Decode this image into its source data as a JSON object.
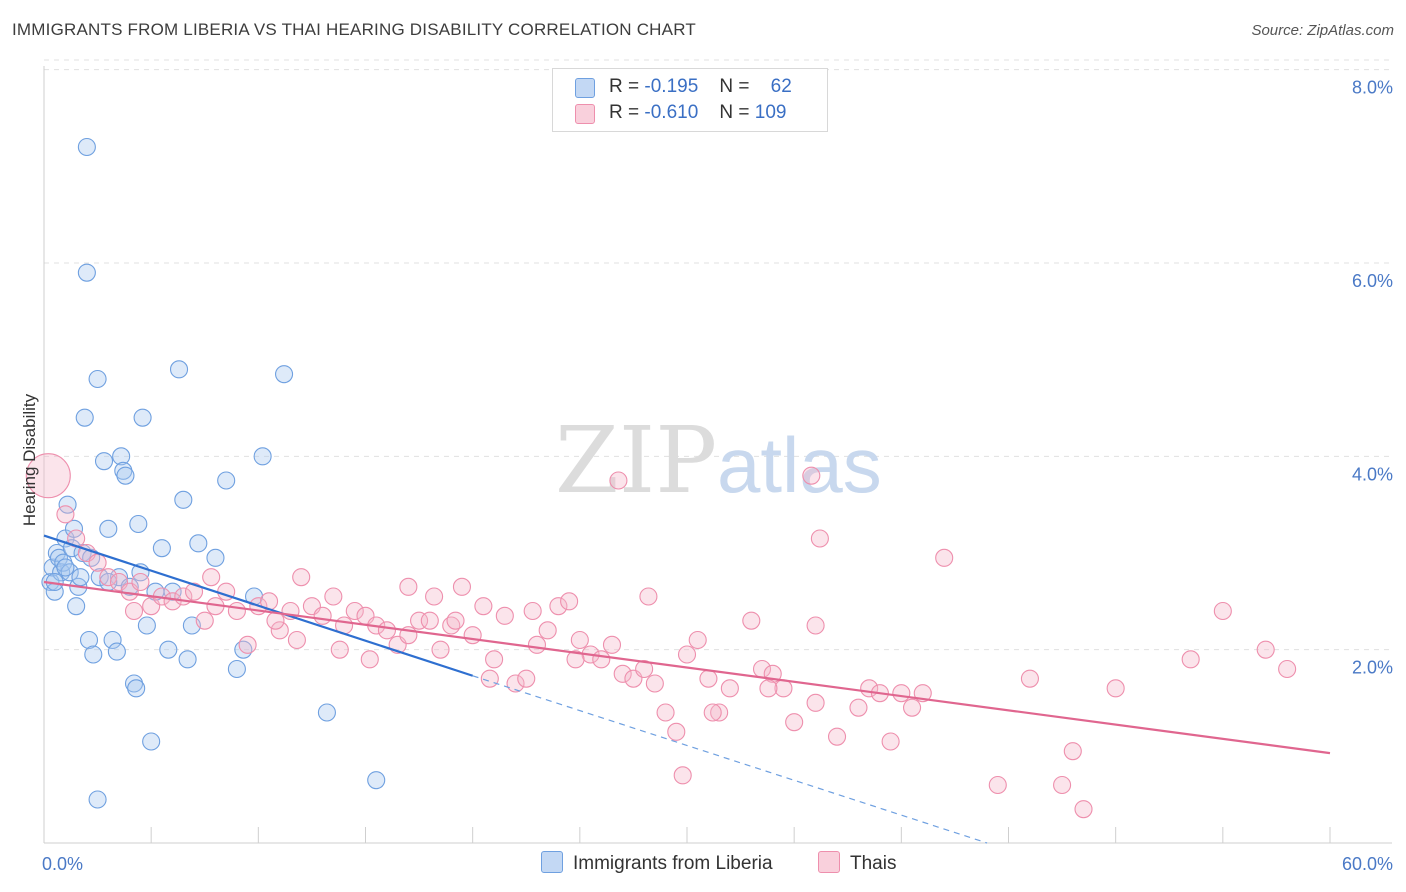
{
  "header": {
    "title": "IMMIGRANTS FROM LIBERIA VS THAI HEARING DISABILITY CORRELATION CHART",
    "source": "Source: ZipAtlas.com"
  },
  "watermark": {
    "zip": "ZIP",
    "atlas": "atlas"
  },
  "legend_top": [
    {
      "r_label": "R =",
      "r_value": "-0.195",
      "n_label": "N =",
      "n_value": "62",
      "color": "#a9c8f0"
    },
    {
      "r_label": "R =",
      "r_value": "-0.610",
      "n_label": "N =",
      "n_value": "109",
      "color": "#f5b8cb"
    }
  ],
  "legend_bottom": [
    {
      "label": "Immigrants from Liberia",
      "color": "#a9c8f0"
    },
    {
      "label": "Thais",
      "color": "#f5b8cb"
    }
  ],
  "chart_data": {
    "type": "scatter",
    "title": "IMMIGRANTS FROM LIBERIA VS THAI HEARING DISABILITY CORRELATION CHART",
    "xlabel": "",
    "ylabel": "Hearing Disability",
    "xlim": [
      0,
      60
    ],
    "ylim": [
      0,
      8.1
    ],
    "x_tick_labels": [
      {
        "value": 0,
        "label": "0.0%"
      },
      {
        "value": 60,
        "label": "60.0%"
      }
    ],
    "y_tick_labels": [
      {
        "value": 2,
        "label": "2.0%"
      },
      {
        "value": 4,
        "label": "4.0%"
      },
      {
        "value": 6,
        "label": "6.0%"
      },
      {
        "value": 8,
        "label": "8.0%"
      }
    ],
    "grid": "horizontal dashed",
    "legend_position": "top-center",
    "series": [
      {
        "name": "Immigrants from Liberia",
        "color": "#6fa0e0",
        "trend": {
          "x0": 0,
          "y0": 3.18,
          "x1": 20,
          "y1": 1.73,
          "dashed_to_x": 44,
          "dashed_to_y": 0
        },
        "points": [
          [
            0.3,
            2.7
          ],
          [
            0.4,
            2.85
          ],
          [
            0.5,
            2.6
          ],
          [
            0.6,
            3.0
          ],
          [
            0.7,
            2.95
          ],
          [
            0.8,
            2.8
          ],
          [
            0.9,
            2.9
          ],
          [
            1.0,
            3.15
          ],
          [
            1.1,
            3.5
          ],
          [
            1.2,
            2.8
          ],
          [
            1.3,
            3.05
          ],
          [
            1.4,
            3.25
          ],
          [
            1.5,
            2.45
          ],
          [
            1.6,
            2.65
          ],
          [
            1.7,
            2.75
          ],
          [
            1.8,
            3.0
          ],
          [
            1.9,
            4.4
          ],
          [
            2.0,
            5.9
          ],
          [
            2.1,
            2.1
          ],
          [
            2.2,
            2.95
          ],
          [
            2.3,
            1.95
          ],
          [
            2.5,
            4.8
          ],
          [
            2.6,
            2.75
          ],
          [
            2.8,
            3.95
          ],
          [
            3.0,
            3.25
          ],
          [
            3.2,
            2.1
          ],
          [
            3.4,
            1.98
          ],
          [
            3.5,
            2.75
          ],
          [
            3.6,
            4.0
          ],
          [
            3.7,
            3.85
          ],
          [
            3.8,
            3.8
          ],
          [
            4.0,
            2.65
          ],
          [
            4.2,
            1.65
          ],
          [
            4.3,
            1.6
          ],
          [
            4.4,
            3.3
          ],
          [
            4.5,
            2.8
          ],
          [
            4.6,
            4.4
          ],
          [
            4.8,
            2.25
          ],
          [
            5.0,
            1.05
          ],
          [
            5.2,
            2.6
          ],
          [
            5.5,
            3.05
          ],
          [
            5.8,
            2.0
          ],
          [
            6.0,
            2.6
          ],
          [
            6.3,
            4.9
          ],
          [
            6.5,
            3.55
          ],
          [
            6.7,
            1.9
          ],
          [
            6.9,
            2.25
          ],
          [
            7.2,
            3.1
          ],
          [
            8.0,
            2.95
          ],
          [
            8.5,
            3.75
          ],
          [
            9.0,
            1.8
          ],
          [
            9.3,
            2.0
          ],
          [
            9.8,
            2.55
          ],
          [
            10.2,
            4.0
          ],
          [
            11.2,
            4.85
          ],
          [
            13.2,
            1.35
          ],
          [
            15.5,
            0.65
          ],
          [
            2.5,
            0.45
          ],
          [
            2.0,
            7.2
          ],
          [
            0.5,
            2.7
          ],
          [
            1.0,
            2.85
          ],
          [
            3.0,
            2.7
          ]
        ]
      },
      {
        "name": "Thais",
        "color": "#ee8fad",
        "trend": {
          "x0": 0,
          "y0": 2.7,
          "x1": 60,
          "y1": 0.93
        },
        "points": [
          [
            0.2,
            3.8
          ],
          [
            1.0,
            3.4
          ],
          [
            1.5,
            3.15
          ],
          [
            2.0,
            3.0
          ],
          [
            2.5,
            2.9
          ],
          [
            3.0,
            2.75
          ],
          [
            3.5,
            2.7
          ],
          [
            4.0,
            2.6
          ],
          [
            4.2,
            2.4
          ],
          [
            4.5,
            2.7
          ],
          [
            5.0,
            2.45
          ],
          [
            5.5,
            2.55
          ],
          [
            6.0,
            2.5
          ],
          [
            6.5,
            2.55
          ],
          [
            7.0,
            2.6
          ],
          [
            7.5,
            2.3
          ],
          [
            8.0,
            2.45
          ],
          [
            8.5,
            2.6
          ],
          [
            9.0,
            2.4
          ],
          [
            9.5,
            2.05
          ],
          [
            10.0,
            2.45
          ],
          [
            10.5,
            2.5
          ],
          [
            11.0,
            2.2
          ],
          [
            11.5,
            2.4
          ],
          [
            12.0,
            2.75
          ],
          [
            12.5,
            2.45
          ],
          [
            13.0,
            2.35
          ],
          [
            13.5,
            2.55
          ],
          [
            14.0,
            2.25
          ],
          [
            14.5,
            2.4
          ],
          [
            15.0,
            2.35
          ],
          [
            15.5,
            2.25
          ],
          [
            16.0,
            2.2
          ],
          [
            16.5,
            2.05
          ],
          [
            17.0,
            2.15
          ],
          [
            17.5,
            2.3
          ],
          [
            18.0,
            2.3
          ],
          [
            18.5,
            2.0
          ],
          [
            19.0,
            2.25
          ],
          [
            19.5,
            2.65
          ],
          [
            20.0,
            2.15
          ],
          [
            20.5,
            2.45
          ],
          [
            21.0,
            1.9
          ],
          [
            21.5,
            2.35
          ],
          [
            22.0,
            1.65
          ],
          [
            22.5,
            1.7
          ],
          [
            23.0,
            2.05
          ],
          [
            23.5,
            2.2
          ],
          [
            24.0,
            2.45
          ],
          [
            24.5,
            2.5
          ],
          [
            25.0,
            2.1
          ],
          [
            25.5,
            1.95
          ],
          [
            26.0,
            1.9
          ],
          [
            26.5,
            2.05
          ],
          [
            27.0,
            1.75
          ],
          [
            27.5,
            1.7
          ],
          [
            28.0,
            1.8
          ],
          [
            28.5,
            1.65
          ],
          [
            29.0,
            1.35
          ],
          [
            29.5,
            1.15
          ],
          [
            30.0,
            1.95
          ],
          [
            30.5,
            2.1
          ],
          [
            31.0,
            1.7
          ],
          [
            31.5,
            1.35
          ],
          [
            32.0,
            1.6
          ],
          [
            33.0,
            2.3
          ],
          [
            33.5,
            1.8
          ],
          [
            34.0,
            1.75
          ],
          [
            34.5,
            1.6
          ],
          [
            35.0,
            1.25
          ],
          [
            36.0,
            2.25
          ],
          [
            37.0,
            1.1
          ],
          [
            38.0,
            1.4
          ],
          [
            38.5,
            1.6
          ],
          [
            39.0,
            1.55
          ],
          [
            39.5,
            1.05
          ],
          [
            40.0,
            1.55
          ],
          [
            40.5,
            1.4
          ],
          [
            41.0,
            1.55
          ],
          [
            42.0,
            2.95
          ],
          [
            44.5,
            0.6
          ],
          [
            46.0,
            1.7
          ],
          [
            47.5,
            0.6
          ],
          [
            48.0,
            0.95
          ],
          [
            48.5,
            0.35
          ],
          [
            50.0,
            1.6
          ],
          [
            53.5,
            1.9
          ],
          [
            55.0,
            2.4
          ],
          [
            57.0,
            2.0
          ],
          [
            58.0,
            1.8
          ],
          [
            17.0,
            2.65
          ],
          [
            18.2,
            2.55
          ],
          [
            20.8,
            1.7
          ],
          [
            22.8,
            2.4
          ],
          [
            26.8,
            3.75
          ],
          [
            31.2,
            1.35
          ],
          [
            33.8,
            1.6
          ],
          [
            35.8,
            3.8
          ],
          [
            36.2,
            3.15
          ],
          [
            36.0,
            1.45
          ],
          [
            10.8,
            2.3
          ],
          [
            13.8,
            2.0
          ],
          [
            15.2,
            1.9
          ],
          [
            19.2,
            2.3
          ],
          [
            24.8,
            1.9
          ],
          [
            28.2,
            2.55
          ],
          [
            29.8,
            0.7
          ],
          [
            7.8,
            2.75
          ],
          [
            11.8,
            2.1
          ]
        ]
      }
    ]
  }
}
